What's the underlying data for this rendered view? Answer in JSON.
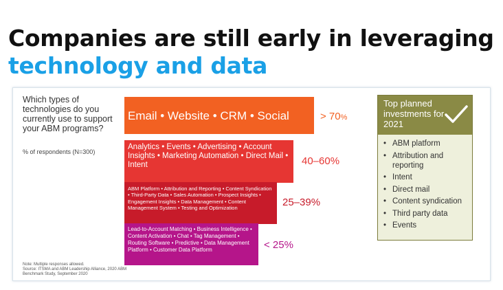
{
  "headline": {
    "line1": "Companies are still early in leveraging",
    "line2": "technology and data"
  },
  "chart_data": {
    "type": "bar",
    "title": "",
    "question": "Which types of technologies do you currently use to support your ABM programs?",
    "respondents_label": "% of respondents (N=300)",
    "categories": [
      "Email • Website • CRM • Social",
      "Analytics • Events • Advertising • Account Insights • Marketing Automation • Direct Mail • Intent",
      "ABM Platform • Attribution and Reporting • Content Syndication • Third-Party Data • Sales Automation • Prospect Insights • Engagement Insights • Data Management • Content Management System • Testing and Optimization",
      "Lead-to-Account Matching • Business Intelligence • Content Activation • Chat • Tag Management • Routing Software • Predictive • Data Management Platform • Customer Data Platform"
    ],
    "value_labels": [
      {
        "prefix": "> 70",
        "suffix": "%"
      },
      {
        "prefix": "40–60",
        "suffix": "%"
      },
      {
        "prefix": "25–39",
        "suffix": "%"
      },
      {
        "prefix": "< 25",
        "suffix": "%"
      }
    ],
    "ranges_percent": [
      [
        70,
        100
      ],
      [
        40,
        60
      ],
      [
        25,
        39
      ],
      [
        0,
        25
      ]
    ],
    "colors": [
      "#f26122",
      "#e63633",
      "#c71b2a",
      "#b5158a"
    ],
    "note": "Note: Multiple responses allowed.",
    "source": "Source: ITSMA and ABM Leadership Alliance, 2020 ABM Benchmark Study, September 2020"
  },
  "planned": {
    "title": "Top planned investments for 2021",
    "icon": "check-icon",
    "header_color": "#8a8a45",
    "items": [
      "ABM platform",
      "Attribution and reporting",
      "Intent",
      "Direct mail",
      "Content syndication",
      "Third party data",
      "Events"
    ]
  },
  "colors": {
    "accent": "#1aa0e6",
    "headline": "#111111"
  }
}
